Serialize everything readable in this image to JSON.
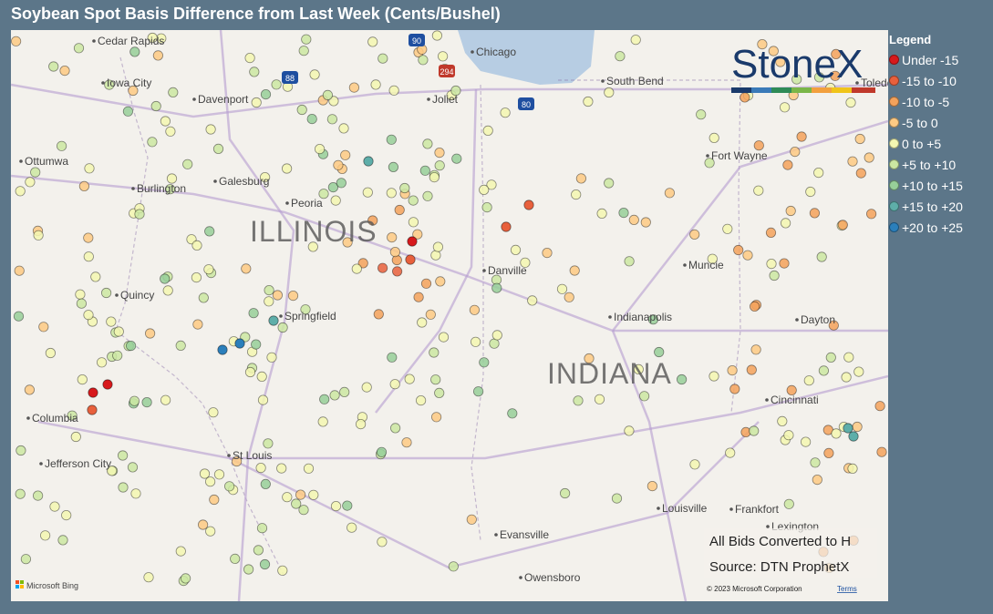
{
  "title": "Soybean Spot Basis Difference from Last Week (Cents/Bushel)",
  "legend": {
    "title": "Legend",
    "items": [
      {
        "label": "Under -15",
        "color": "#d7191c"
      },
      {
        "label": "-15 to -10",
        "color": "#e8603c"
      },
      {
        "label": "-10 to -5",
        "color": "#f3a25c"
      },
      {
        "label": "-5 to 0",
        "color": "#fdca84"
      },
      {
        "label": "0 to +5",
        "color": "#f3f7b2"
      },
      {
        "label": "+5 to +10",
        "color": "#cbe7a2"
      },
      {
        "label": "+10 to +15",
        "color": "#97cf99"
      },
      {
        "label": "+15 to +20",
        "color": "#5eaea9"
      },
      {
        "label": "+20 to +25",
        "color": "#2b7fbb"
      }
    ]
  },
  "map": {
    "states": [
      "ILLINOIS",
      "INDIANA"
    ],
    "cities": [
      "Cedar Rapids",
      "Iowa City",
      "Davenport",
      "Chicago",
      "South Bend",
      "Toledo",
      "Joliet",
      "Ottumwa",
      "Galesburg",
      "Burlington",
      "Peoria",
      "Fort Wayne",
      "Quincy",
      "Springfield",
      "Danville",
      "Muncie",
      "Indianapolis",
      "Dayton",
      "Columbia",
      "Jefferson City",
      "St Louis",
      "Cincinnati",
      "Louisville",
      "Frankfort",
      "Lexington",
      "Evansville",
      "Owensboro"
    ],
    "highways": [
      "90",
      "294",
      "88",
      "80"
    ],
    "logo": "StoneX",
    "notes": [
      "All Bids Converted to H",
      "Source: DTN ProphetX"
    ],
    "attribution": {
      "provider": "Microsoft Bing",
      "copyright": "© 2023 Microsoft Corporation",
      "terms": "Terms"
    }
  }
}
